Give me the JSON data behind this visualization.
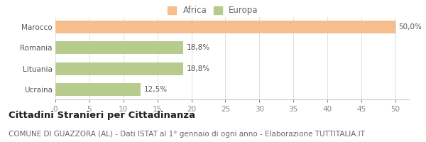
{
  "categories": [
    "Marocco",
    "Romania",
    "Lituania",
    "Ucraina"
  ],
  "values": [
    50.0,
    18.8,
    18.8,
    12.5
  ],
  "labels": [
    "50,0%",
    "18,8%",
    "18,8%",
    "12,5%"
  ],
  "colors": [
    "#f5be8c",
    "#b8cb8e",
    "#b8cb8e",
    "#b8cb8e"
  ],
  "legend": [
    {
      "label": "Africa",
      "color": "#f5be8c"
    },
    {
      "label": "Europa",
      "color": "#b8cb8e"
    }
  ],
  "xlim": [
    0,
    52
  ],
  "xticks": [
    0,
    5,
    10,
    15,
    20,
    25,
    30,
    35,
    40,
    45,
    50
  ],
  "title_bold": "Cittadini Stranieri per Cittadinanza",
  "subtitle": "COMUNE DI GUAZZORA (AL) - Dati ISTAT al 1° gennaio di ogni anno - Elaborazione TUTTITALIA.IT",
  "bg_color": "#ffffff",
  "bar_edge_color": "none",
  "title_fontsize": 9.5,
  "subtitle_fontsize": 7.5,
  "tick_fontsize": 7.5,
  "label_fontsize": 7.5,
  "legend_fontsize": 8.5
}
